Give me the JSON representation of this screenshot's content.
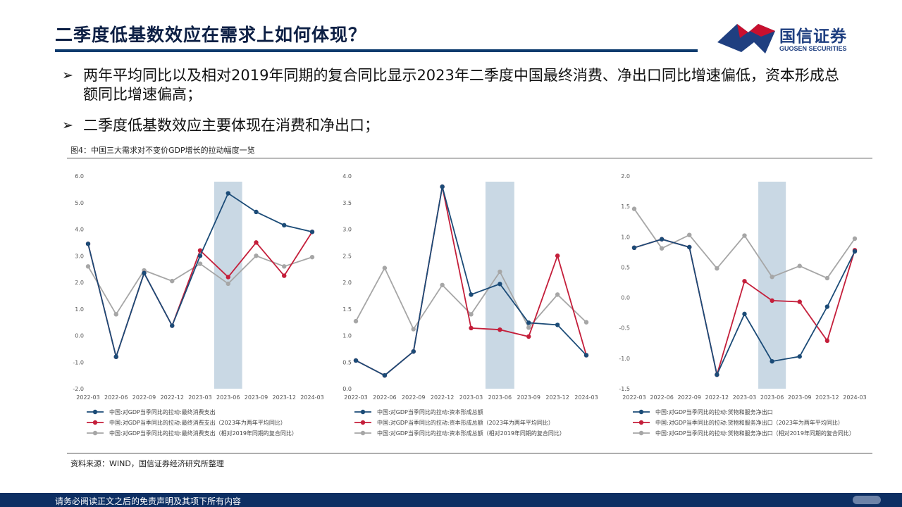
{
  "slide": {
    "title": "二季度低基数效应在需求上如何体现？",
    "bullets": [
      "两年平均同比以及相对2019年同期的复合同比显示2023年二季度中国最终消费、净出口同比增速偏低，资本形成总额同比增速偏高；",
      "二季度低基数效应主要体现在消费和净出口；"
    ],
    "bullet_marker": "➢",
    "figure_caption": "图4：中国三大需求对不变价GDP增长的拉动幅度一览",
    "source": "资料来源：WIND，国信证券经济研究所整理",
    "footer": "请务必阅读正文之后的免责声明及其项下所有内容"
  },
  "logo": {
    "cn": "国信证券",
    "en": "GUOSEN SECURITIES",
    "colors": {
      "blue": "#1f3f80",
      "red": "#c8102e"
    }
  },
  "colors": {
    "series": [
      "#1b4b77",
      "#c41e3a",
      "#a6a6a6"
    ],
    "highlight": "#c9d8e4",
    "title": "#0c1f44",
    "footer_bg": "#0d2f63"
  },
  "chart_data": [
    {
      "type": "line",
      "x": [
        "2022-03",
        "2022-06",
        "2022-09",
        "2022-12",
        "2023-03",
        "2023-06",
        "2023-09",
        "2023-12",
        "2024-03"
      ],
      "ylim": [
        -2.0,
        6.0
      ],
      "yticks": [
        "-2.0",
        "-1.0",
        "0.0",
        "1.0",
        "2.0",
        "3.0",
        "4.0",
        "5.0",
        "6.0"
      ],
      "highlight_band": "2023-06",
      "legend_position": "bottom",
      "series": [
        {
          "name": "中国:对GDP当季同比的拉动:最终消费支出",
          "values": [
            3.45,
            -0.8,
            2.35,
            0.37,
            3.0,
            5.35,
            4.65,
            4.15,
            3.9
          ]
        },
        {
          "name": "中国:对GDP当季同比的拉动:最终消费支出（2023年为两年平均同比）",
          "values": [
            3.45,
            -0.8,
            2.35,
            0.37,
            3.2,
            2.2,
            3.5,
            2.25,
            3.9
          ]
        },
        {
          "name": "中国:对GDP当季同比的拉动:最终消费支出（相对2019年同期的复合同比）",
          "values": [
            2.6,
            0.8,
            2.45,
            2.05,
            2.7,
            1.95,
            3.0,
            2.6,
            2.95
          ]
        }
      ]
    },
    {
      "type": "line",
      "x": [
        "2022-03",
        "2022-06",
        "2022-09",
        "2022-12",
        "2023-03",
        "2023-06",
        "2023-09",
        "2023-12",
        "2024-03"
      ],
      "ylim": [
        0.0,
        4.0
      ],
      "yticks": [
        "0.0",
        "0.5",
        "1.0",
        "1.5",
        "2.0",
        "2.5",
        "3.0",
        "3.5",
        "4.0"
      ],
      "highlight_band": "2023-06",
      "legend_position": "bottom",
      "series": [
        {
          "name": "中国:对GDP当季同比的拉动:资本形成总额",
          "values": [
            0.53,
            0.25,
            0.7,
            3.8,
            1.77,
            1.97,
            1.24,
            1.2,
            0.63
          ]
        },
        {
          "name": "中国:对GDP当季同比的拉动:资本形成总额（2023年为两年平均同比）",
          "values": [
            0.53,
            0.25,
            0.7,
            3.8,
            1.14,
            1.11,
            0.98,
            2.5,
            0.63
          ]
        },
        {
          "name": "中国:对GDP当季同比的拉动:资本形成总额（相对2019年同期的复合同比）",
          "values": [
            1.27,
            2.27,
            1.12,
            1.95,
            1.4,
            2.2,
            1.15,
            1.77,
            1.25
          ]
        }
      ]
    },
    {
      "type": "line",
      "x": [
        "2022-03",
        "2022-06",
        "2022-09",
        "2022-12",
        "2023-03",
        "2023-06",
        "2023-09",
        "2023-12",
        "2024-03"
      ],
      "ylim": [
        -1.5,
        2.0
      ],
      "yticks": [
        "-1.5",
        "-1.0",
        "-0.5",
        "0.0",
        "0.5",
        "1.0",
        "1.5",
        "2.0"
      ],
      "highlight_band": "2023-06",
      "legend_position": "bottom",
      "series": [
        {
          "name": "中国:对GDP当季同比的拉动:货物和服务净出口",
          "values": [
            0.82,
            0.96,
            0.83,
            -1.27,
            -0.27,
            -1.05,
            -0.97,
            -0.15,
            0.76
          ]
        },
        {
          "name": "中国:对GDP当季同比的拉动:货物和服务净出口（2023年为两年平均同比）",
          "values": [
            0.82,
            0.96,
            0.83,
            -1.27,
            0.27,
            -0.05,
            -0.07,
            -0.71,
            0.78
          ]
        },
        {
          "name": "中国:对GDP当季同比的拉动:货物和服务净出口（相对2019年同期的复合同比）",
          "values": [
            1.46,
            0.81,
            1.03,
            0.48,
            1.02,
            0.34,
            0.52,
            0.32,
            0.97
          ]
        }
      ]
    }
  ]
}
